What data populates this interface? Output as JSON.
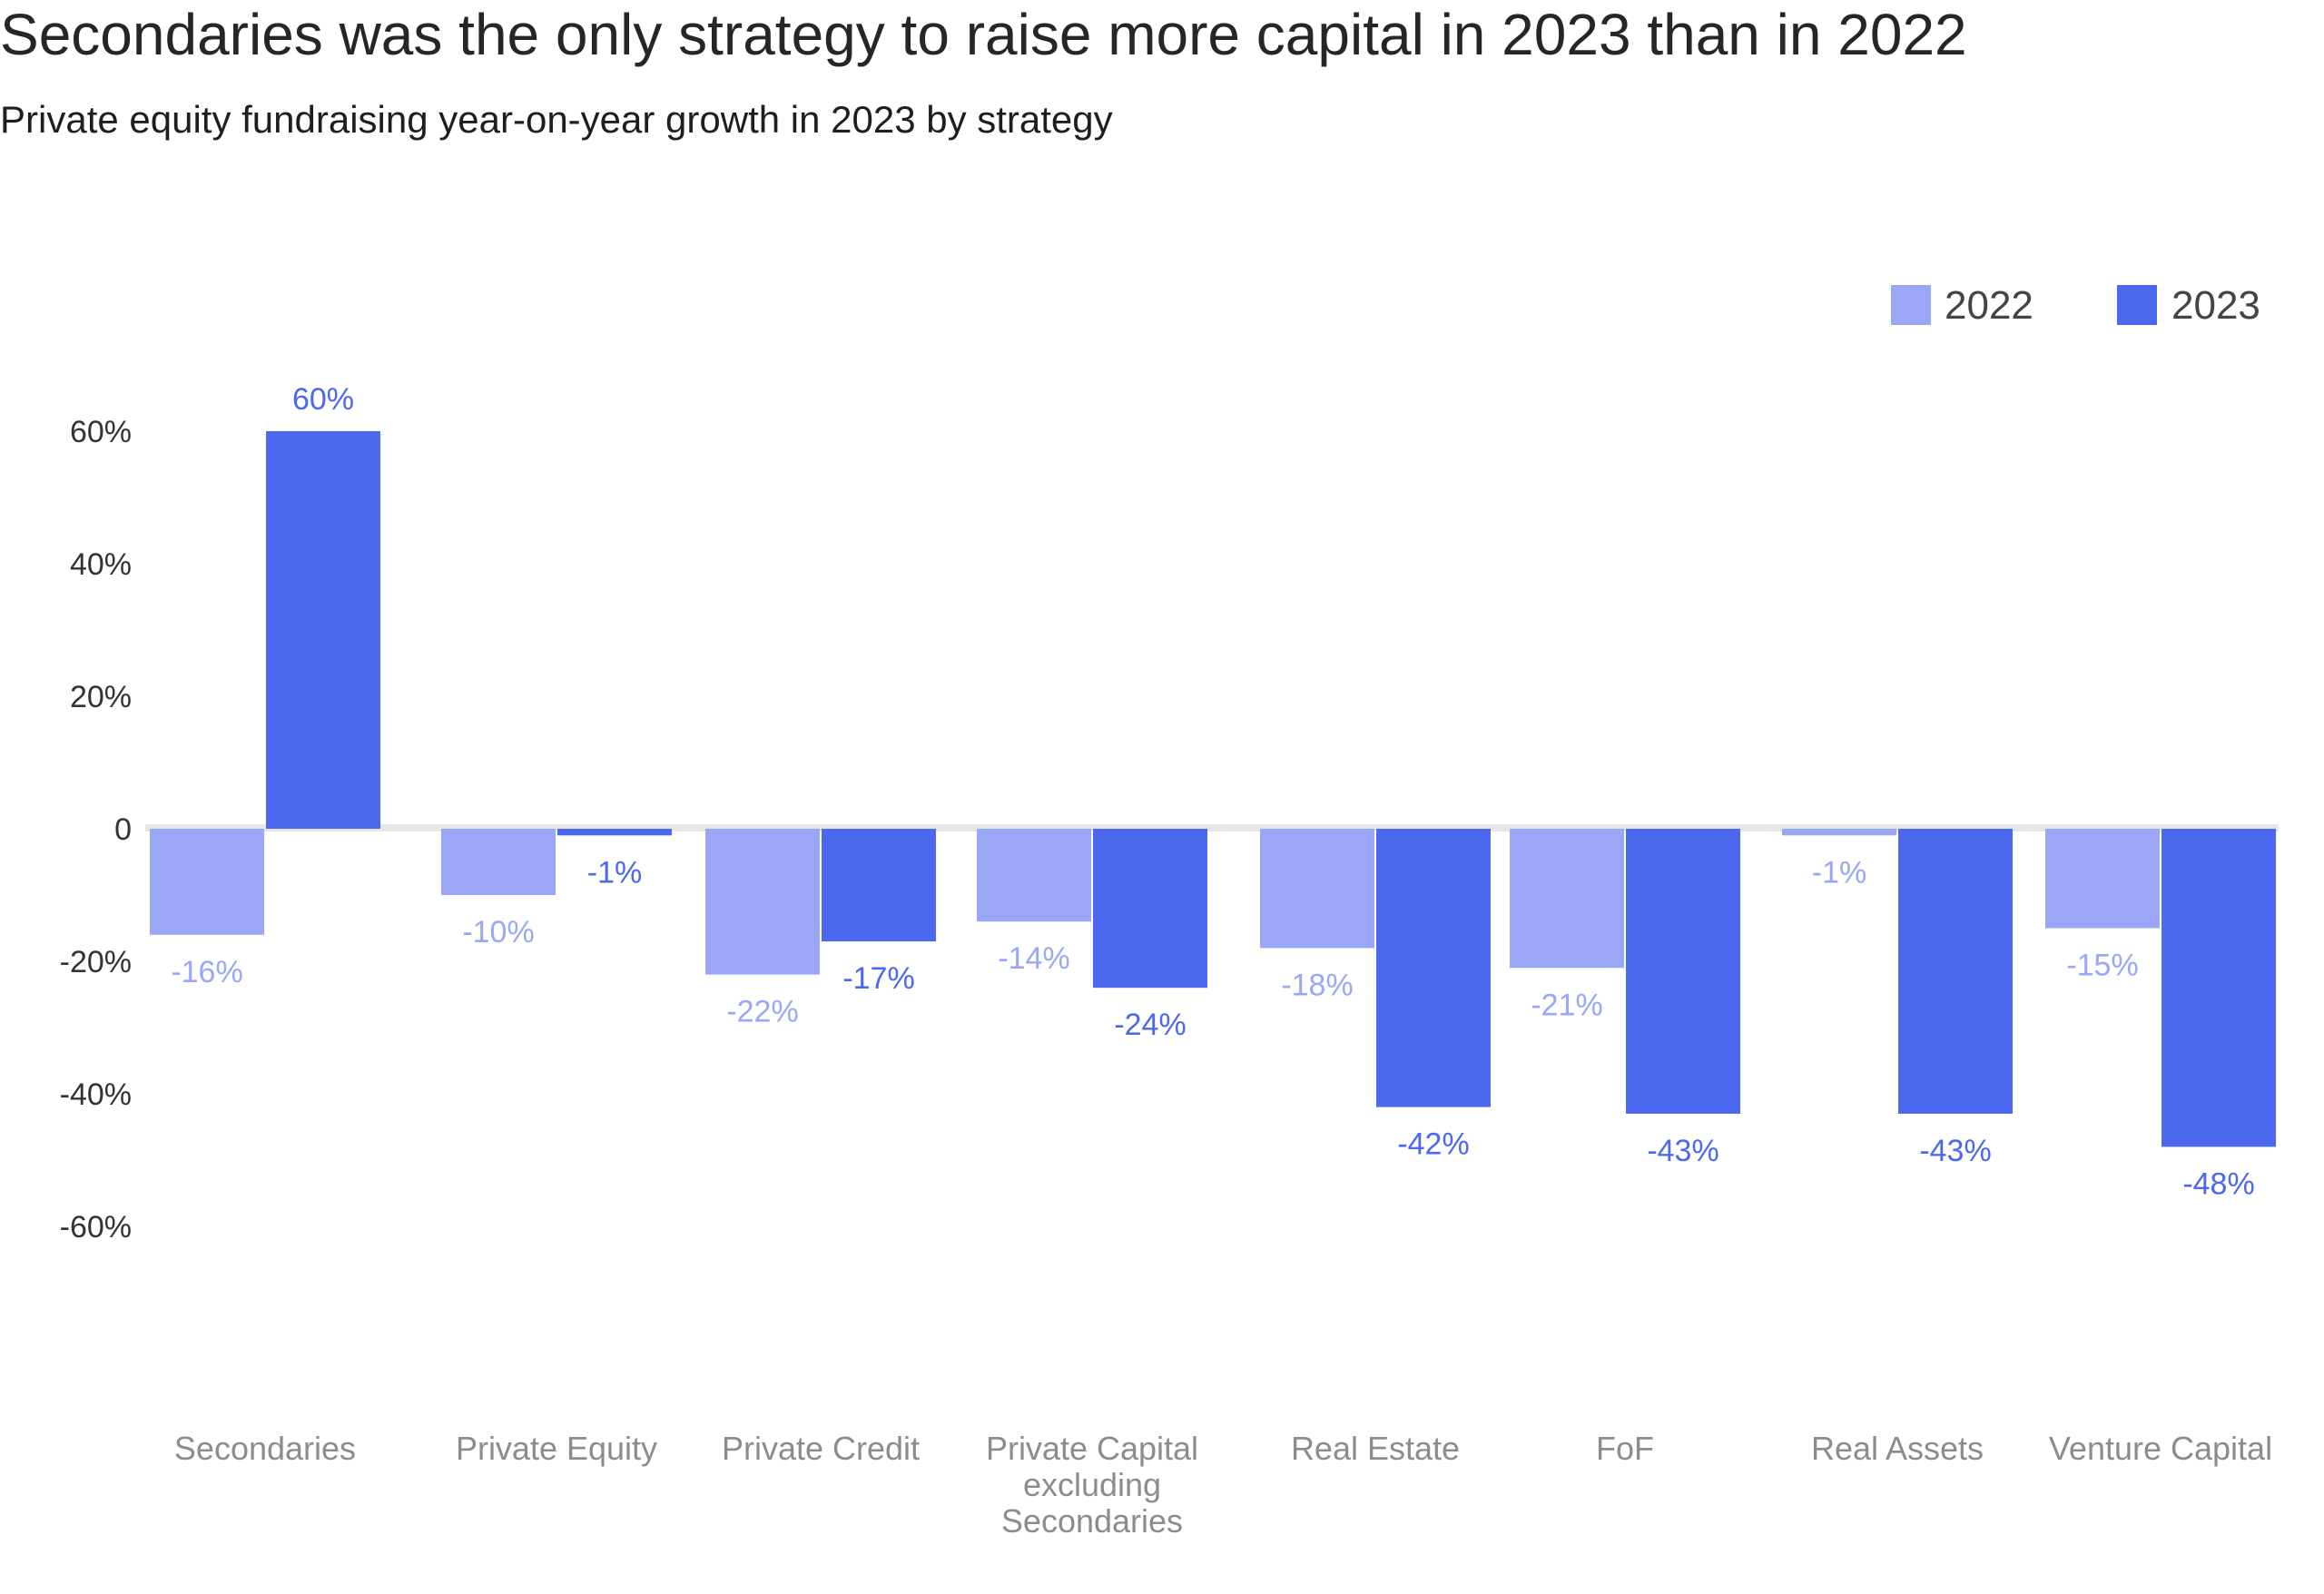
{
  "chart_data": {
    "type": "bar",
    "title": "Secondaries was the only strategy to raise more capital in 2023 than in 2022",
    "subtitle": "Private equity fundraising year-on-year growth in 2023 by strategy",
    "categories": [
      [
        "Secondaries"
      ],
      [
        "Private Equity"
      ],
      [
        "Private Credit"
      ],
      [
        "Private Capital",
        "excluding",
        "Secondaries"
      ],
      [
        "Real Estate"
      ],
      [
        "FoF"
      ],
      [
        "Real Assets"
      ],
      [
        "Venture Capital"
      ]
    ],
    "series": [
      {
        "name": "2022",
        "color": "#9aa7f7",
        "values": [
          -16,
          -10,
          -22,
          -14,
          -18,
          -21,
          -1,
          -15
        ],
        "labels": [
          "-16%",
          "-10%",
          "-22%",
          "-14%",
          "-18%",
          "-21%",
          "-1%",
          "-15%"
        ]
      },
      {
        "name": "2023",
        "color": "#4b68ee",
        "values": [
          60,
          -1,
          -17,
          -24,
          -42,
          -43,
          -43,
          -48
        ],
        "labels": [
          "60%",
          "-1%",
          "-17%",
          "-24%",
          "-42%",
          "-43%",
          "-43%",
          "-48%"
        ]
      }
    ],
    "yticks": [
      60,
      40,
      20,
      0,
      -20,
      -40,
      -60
    ],
    "ytick_labels": [
      "60%",
      "40%",
      "20%",
      "0",
      "-20%",
      "-40%",
      "-60%"
    ],
    "ylim": [
      -60,
      60
    ],
    "xlabel": "",
    "ylabel": "",
    "legend_position": "top-right",
    "grid": false
  }
}
